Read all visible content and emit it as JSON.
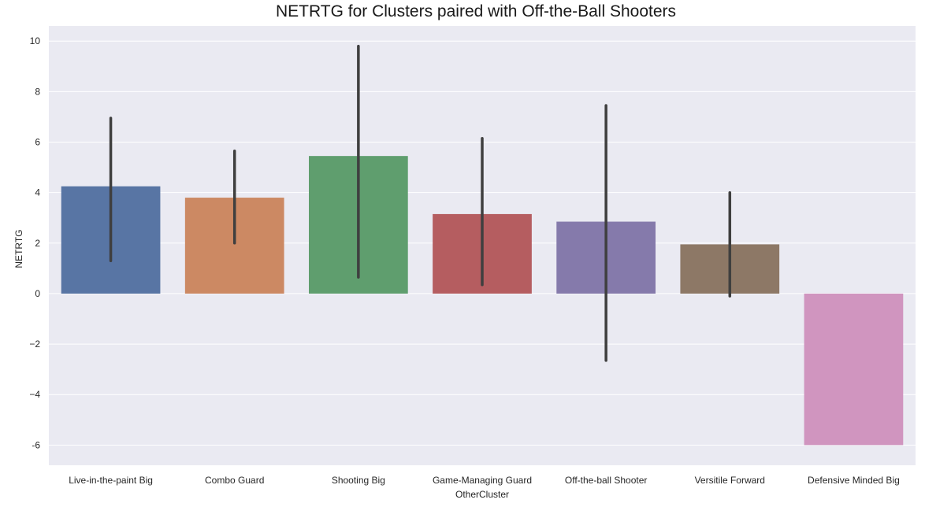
{
  "chart_data": {
    "type": "bar",
    "title": "NETRTG for Clusters paired with Off-the-Ball Shooters",
    "xlabel": "OtherCluster",
    "ylabel": "NETRTG",
    "ylim": [
      -6.8,
      10.6
    ],
    "yticks": [
      10,
      8,
      6,
      4,
      2,
      0,
      -2,
      -4,
      -6
    ],
    "ytick_labels": [
      "10",
      "8",
      "6",
      "4",
      "2",
      "0",
      "−2",
      "−4",
      "-6"
    ],
    "grid": true,
    "categories": [
      "Live-in-the-paint Big",
      "Combo Guard",
      "Shooting Big",
      "Game-Managing Guard",
      "Off-the-ball Shooter",
      "Versitile Forward",
      "Defensive Minded Big"
    ],
    "values": [
      4.25,
      3.8,
      5.45,
      3.15,
      2.85,
      1.95,
      -6.0
    ],
    "ci_low": [
      1.3,
      2.0,
      0.65,
      0.35,
      -2.65,
      -0.1,
      null
    ],
    "ci_high": [
      6.95,
      5.65,
      9.8,
      6.15,
      7.45,
      4.0,
      null
    ],
    "colors": [
      "#5875a4",
      "#cc8963",
      "#5f9e6e",
      "#b55d60",
      "#857aab",
      "#8d7866",
      "#d095bf"
    ],
    "background": "#eaeaf2",
    "error_bar_color": "#3f3f3f"
  }
}
